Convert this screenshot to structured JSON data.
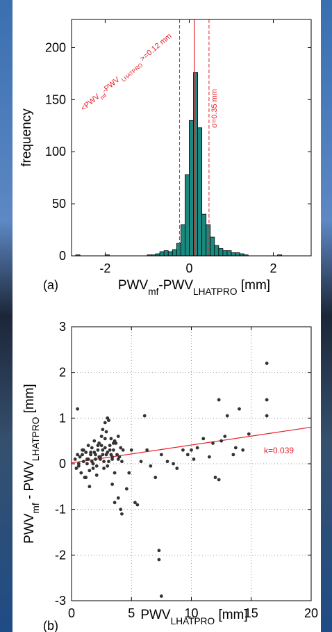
{
  "chart_data": [
    {
      "type": "histogram",
      "panel_label": "(a)",
      "ylabel": "frequency",
      "xlabel": [
        {
          "text": "PWV"
        },
        {
          "text": "mf",
          "sub": true
        },
        {
          "text": "-PWV"
        },
        {
          "text": "LHATPRO",
          "sub": true
        },
        {
          "text": " [mm]"
        }
      ],
      "bins": [
        -2.8,
        -2.7,
        -2.6,
        -2.5,
        -2.4,
        -2.3,
        -2.2,
        -2.1,
        -2.0,
        -1.9,
        -1.8,
        -1.7,
        -1.6,
        -1.5,
        -1.4,
        -1.3,
        -1.2,
        -1.1,
        -1.0,
        -0.9,
        -0.8,
        -0.7,
        -0.6,
        -0.5,
        -0.4,
        -0.3,
        -0.2,
        -0.1,
        0,
        0.1,
        0.2,
        0.3,
        0.4,
        0.5,
        0.6,
        0.7,
        0.8,
        0.9,
        1.0,
        1.1,
        1.2,
        1.3,
        1.4,
        1.5,
        1.6,
        1.7,
        1.8,
        1.9,
        2.0,
        2.1,
        2.2,
        2.3,
        2.4,
        2.5,
        2.6,
        2.7,
        2.8,
        2.9
      ],
      "values": [
        0,
        1,
        0,
        0,
        0,
        0,
        0,
        0,
        1,
        0,
        0,
        0,
        0,
        0,
        0,
        0,
        0,
        0,
        1,
        1,
        2,
        4,
        5,
        4,
        6,
        12,
        30,
        78,
        130,
        176,
        123,
        40,
        30,
        18,
        10,
        7,
        5,
        5,
        3,
        3,
        2,
        1,
        0,
        0,
        0,
        0,
        0,
        0,
        0,
        1,
        0,
        0,
        0,
        0,
        0,
        0,
        0
      ],
      "color": "#1a8a80",
      "xlim": [
        -2.8,
        2.9
      ],
      "xticks": [
        -2,
        0,
        2
      ],
      "ylim": [
        0,
        227
      ],
      "yticks": [
        0,
        50,
        100,
        150,
        200
      ],
      "grid": false,
      "mean": 0.12,
      "std": 0.35,
      "line_color": "#e8202a",
      "mean_label": [
        {
          "text": "<PWV"
        },
        {
          "text": "mf",
          "sub": true
        },
        {
          "text": "-PWV"
        },
        {
          "text": " LHATPRO",
          "sub": true
        },
        {
          "text": " >=0.12 mm"
        }
      ],
      "std_label": "σ=0.35 mm"
    },
    {
      "type": "scatter",
      "panel_label": "(b)",
      "ylabel": [
        {
          "text": "PWV"
        },
        {
          "text": "mf",
          "sub": true
        },
        {
          "text": " - PWV"
        },
        {
          "text": "LHATPRO",
          "sub": true
        },
        {
          "text": " [mm]"
        }
      ],
      "xlabel": [
        {
          "text": "PWV"
        },
        {
          "text": "LHATPRO",
          "sub": true
        },
        {
          "text": " [mm]"
        }
      ],
      "x": [
        0.3,
        0.4,
        0.5,
        0.6,
        0.7,
        0.8,
        0.9,
        1.0,
        1.1,
        1.2,
        1.3,
        1.4,
        1.5,
        1.6,
        1.7,
        1.8,
        1.9,
        2.0,
        2.1,
        2.2,
        2.3,
        2.4,
        2.5,
        2.6,
        2.7,
        2.8,
        2.9,
        3.0,
        3.1,
        3.2,
        3.3,
        3.4,
        3.5,
        3.6,
        3.7,
        3.8,
        3.9,
        4.0,
        4.1,
        4.2,
        0.6,
        0.9,
        1.2,
        1.4,
        1.7,
        1.9,
        2.1,
        2.3,
        2.5,
        2.7,
        2.9,
        3.2,
        3.4,
        3.6,
        3.9,
        4.3,
        1.0,
        1.3,
        1.6,
        1.8,
        2.0,
        2.2,
        2.4,
        2.6,
        2.8,
        3.0,
        3.3,
        3.5,
        16.3,
        16.3,
        16.3,
        12.3,
        13,
        14,
        13.7,
        14.3,
        14.8,
        12.8,
        12.5,
        11.8,
        11,
        10.5,
        10,
        9.7,
        10.2,
        11.5,
        12,
        12.3,
        13.5,
        9.3,
        8.8,
        8.5,
        8,
        7.5,
        7.3,
        7.3,
        7.5,
        7,
        6.6,
        6.3,
        6.1,
        5.8,
        5.5,
        5.3,
        5,
        4.8,
        4.6,
        4.2,
        4.1,
        3.9,
        3.6,
        3.4,
        3.1,
        3.0,
        2.8,
        2.6,
        0.5,
        1.5
      ],
      "y": [
        0.1,
        -0.1,
        0.2,
        0.0,
        0.15,
        -0.2,
        0.3,
        0.05,
        -0.3,
        0.25,
        0.1,
        0.4,
        -0.15,
        0.2,
        0.35,
        0.0,
        0.5,
        0.1,
        -0.25,
        0.3,
        0.45,
        0.15,
        0.6,
        0.2,
        -0.1,
        0.35,
        0.7,
        0.25,
        0.05,
        0.4,
        0.55,
        0.1,
        0.3,
        -0.2,
        0.45,
        0.2,
        0.6,
        0.15,
        0.35,
        0.05,
        -0.05,
        0.2,
        -0.3,
        0.1,
        0.05,
        0.25,
        -0.05,
        0.15,
        0.4,
        0.05,
        0.2,
        0.3,
        0.15,
        0.5,
        0.1,
        0.3,
        0.3,
        0.0,
        0.25,
        -0.1,
        0.2,
        0.4,
        0.1,
        0.3,
        0.55,
        -0.05,
        0.2,
        0.45,
        2.2,
        1.4,
        1.05,
        1.4,
        1.05,
        1.2,
        0.35,
        0.3,
        0.65,
        0.6,
        0.5,
        0.45,
        0.55,
        0.35,
        0.3,
        0.2,
        0.1,
        0.15,
        -0.3,
        -0.35,
        0.2,
        0.3,
        -0.1,
        0,
        0.05,
        0.2,
        -1.9,
        -2.1,
        -2.9,
        -0.3,
        -0.05,
        0.3,
        1.05,
        0.05,
        -0.9,
        -0.85,
        0.3,
        -0.2,
        -0.55,
        -1.1,
        -1.0,
        -0.75,
        -0.85,
        -0.45,
        0.95,
        1.0,
        0.9,
        0.75,
        1.2,
        -0.5
      ],
      "color": "#333333",
      "xlim": [
        0,
        20
      ],
      "xticks": [
        0,
        5,
        10,
        15,
        20
      ],
      "ylim": [
        -3,
        3
      ],
      "yticks": [
        -3,
        -2,
        -1,
        0,
        1,
        2,
        3
      ],
      "grid": true,
      "fit": {
        "slope": 0.039,
        "intercept": 0.02,
        "label": "k=0.039",
        "color": "#e8202a"
      }
    }
  ]
}
